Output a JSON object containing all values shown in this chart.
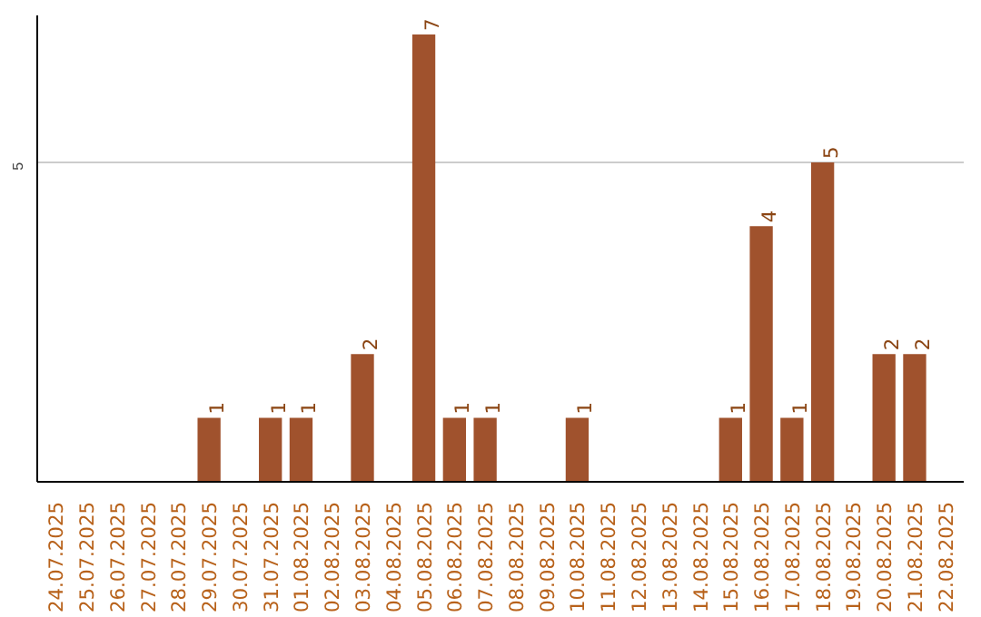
{
  "chart_data": {
    "type": "bar",
    "categories": [
      "24.07.2025",
      "25.07.2025",
      "26.07.2025",
      "27.07.2025",
      "28.07.2025",
      "29.07.2025",
      "30.07.2025",
      "31.07.2025",
      "01.08.2025",
      "02.08.2025",
      "03.08.2025",
      "04.08.2025",
      "05.08.2025",
      "06.08.2025",
      "07.08.2025",
      "08.08.2025",
      "09.08.2025",
      "10.08.2025",
      "11.08.2025",
      "12.08.2025",
      "13.08.2025",
      "14.08.2025",
      "15.08.2025",
      "16.08.2025",
      "17.08.2025",
      "18.08.2025",
      "19.08.2025",
      "20.08.2025",
      "21.08.2025",
      "22.08.2025"
    ],
    "values": [
      0,
      0,
      0,
      0,
      0,
      1,
      0,
      1,
      1,
      0,
      2,
      0,
      7,
      1,
      1,
      0,
      0,
      1,
      0,
      0,
      0,
      0,
      1,
      4,
      1,
      5,
      0,
      2,
      2,
      0
    ],
    "value_labels": [
      null,
      null,
      null,
      null,
      null,
      "1",
      null,
      "1",
      "1",
      null,
      "2",
      null,
      "7",
      "1",
      "1",
      null,
      null,
      "1",
      null,
      null,
      null,
      null,
      "1",
      "4",
      "1",
      "5",
      null,
      "2",
      "2",
      null
    ],
    "color": "#a0522d",
    "ylim": [
      0,
      7.3
    ],
    "yticks": [
      5
    ],
    "grid": "y"
  }
}
